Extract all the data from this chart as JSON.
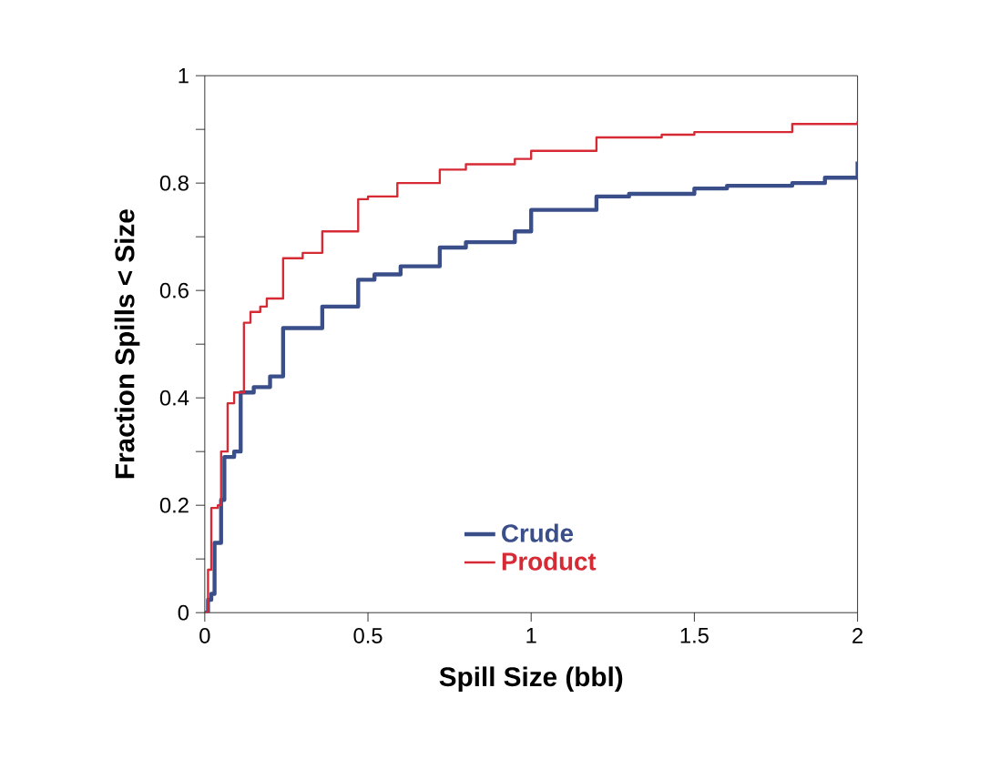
{
  "chart_data": {
    "type": "step",
    "xlabel": "Spill Size (bbl)",
    "ylabel": "Fraction Spills < Size",
    "xlim": [
      0,
      2
    ],
    "ylim": [
      0,
      1
    ],
    "xticks": [
      0,
      0.5,
      1,
      1.5,
      2
    ],
    "yticks": [
      0,
      {
        "value": 0.1,
        "label": null
      },
      0.2,
      {
        "value": 0.3,
        "label": null
      },
      0.4,
      {
        "value": 0.5,
        "label": null
      },
      0.6,
      {
        "value": 0.7,
        "label": null
      },
      0.8,
      {
        "value": 0.9,
        "label": null
      },
      1
    ],
    "legend": "bottom",
    "grid": false,
    "marker": "none",
    "line_style": "solid",
    "series": [
      {
        "name": "Crude",
        "color": "#3a4f8a",
        "x": [
          0,
          0.01,
          0.02,
          0.03,
          0.05,
          0.06,
          0.09,
          0.11,
          0.15,
          0.2,
          0.24,
          0.36,
          0.47,
          0.52,
          0.6,
          0.72,
          0.8,
          0.95,
          1.0,
          1.2,
          1.3,
          1.5,
          1.6,
          1.8,
          1.9,
          2.0
        ],
        "values": [
          0,
          0.024,
          0.035,
          0.13,
          0.21,
          0.29,
          0.3,
          0.41,
          0.42,
          0.44,
          0.53,
          0.57,
          0.62,
          0.63,
          0.645,
          0.68,
          0.69,
          0.71,
          0.75,
          0.775,
          0.78,
          0.79,
          0.795,
          0.8,
          0.81,
          0.84
        ]
      },
      {
        "name": "Product",
        "color": "#d62a35",
        "x": [
          0,
          0.01,
          0.02,
          0.04,
          0.05,
          0.07,
          0.09,
          0.12,
          0.14,
          0.17,
          0.19,
          0.24,
          0.3,
          0.36,
          0.47,
          0.5,
          0.59,
          0.72,
          0.8,
          0.95,
          1.0,
          1.2,
          1.4,
          1.5,
          1.8,
          2.0
        ],
        "values": [
          0,
          0.08,
          0.195,
          0.2,
          0.3,
          0.39,
          0.41,
          0.54,
          0.56,
          0.57,
          0.585,
          0.66,
          0.67,
          0.71,
          0.77,
          0.775,
          0.8,
          0.825,
          0.835,
          0.845,
          0.86,
          0.885,
          0.89,
          0.895,
          0.91,
          0.915
        ]
      }
    ]
  }
}
